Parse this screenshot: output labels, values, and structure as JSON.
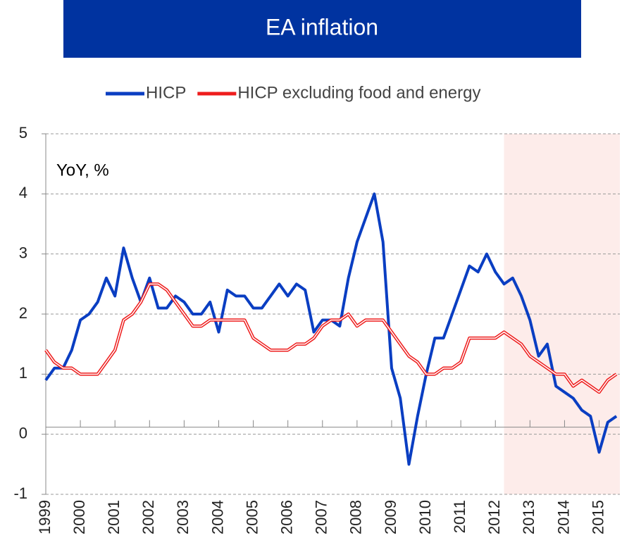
{
  "chart_data": {
    "type": "line",
    "title": "EA inflation",
    "annotation": "YoY, %",
    "x": [
      1999.0,
      1999.25,
      1999.5,
      1999.75,
      2000.0,
      2000.25,
      2000.5,
      2000.75,
      2001.0,
      2001.25,
      2001.5,
      2001.75,
      2002.0,
      2002.25,
      2002.5,
      2002.75,
      2003.0,
      2003.25,
      2003.5,
      2003.75,
      2004.0,
      2004.25,
      2004.5,
      2004.75,
      2005.0,
      2005.25,
      2005.5,
      2005.75,
      2006.0,
      2006.25,
      2006.5,
      2006.75,
      2007.0,
      2007.25,
      2007.5,
      2007.75,
      2008.0,
      2008.25,
      2008.5,
      2008.75,
      2009.0,
      2009.25,
      2009.5,
      2009.75,
      2010.0,
      2010.25,
      2010.5,
      2010.75,
      2011.0,
      2011.25,
      2011.5,
      2011.75,
      2012.0,
      2012.25,
      2012.5,
      2012.75,
      2013.0,
      2013.25,
      2013.5,
      2013.75,
      2014.0,
      2014.25,
      2014.5,
      2014.75,
      2015.0,
      2015.25,
      2015.5
    ],
    "series": [
      {
        "name": "HICP",
        "color": "#0a3ec2",
        "values": [
          0.9,
          1.1,
          1.1,
          1.4,
          1.9,
          2.0,
          2.2,
          2.6,
          2.3,
          3.1,
          2.6,
          2.2,
          2.6,
          2.1,
          2.1,
          2.3,
          2.2,
          2.0,
          2.0,
          2.2,
          1.7,
          2.4,
          2.3,
          2.3,
          2.1,
          2.1,
          2.3,
          2.5,
          2.3,
          2.5,
          2.4,
          1.7,
          1.9,
          1.9,
          1.8,
          2.6,
          3.2,
          3.6,
          4.0,
          3.2,
          1.1,
          0.6,
          -0.5,
          0.3,
          1.0,
          1.6,
          1.6,
          2.0,
          2.4,
          2.8,
          2.7,
          3.0,
          2.7,
          2.5,
          2.6,
          2.3,
          1.9,
          1.3,
          1.5,
          0.8,
          0.7,
          0.6,
          0.4,
          0.3,
          -0.3,
          0.2,
          0.3
        ]
      },
      {
        "name": "HICP excluding food and energy",
        "color": "#ee1c1c",
        "values": [
          1.4,
          1.2,
          1.1,
          1.1,
          1.0,
          1.0,
          1.0,
          1.2,
          1.4,
          1.9,
          2.0,
          2.2,
          2.5,
          2.5,
          2.4,
          2.2,
          2.0,
          1.8,
          1.8,
          1.9,
          1.9,
          1.9,
          1.9,
          1.9,
          1.6,
          1.5,
          1.4,
          1.4,
          1.4,
          1.5,
          1.5,
          1.6,
          1.8,
          1.9,
          1.9,
          2.0,
          1.8,
          1.9,
          1.9,
          1.9,
          1.7,
          1.5,
          1.3,
          1.2,
          1.0,
          1.0,
          1.1,
          1.1,
          1.2,
          1.6,
          1.6,
          1.6,
          1.6,
          1.7,
          1.6,
          1.5,
          1.3,
          1.2,
          1.1,
          1.0,
          1.0,
          0.8,
          0.9,
          0.8,
          0.7,
          0.9,
          1.0
        ]
      }
    ],
    "xlim": [
      1999,
      2015.6
    ],
    "xticks": [
      1999,
      2000,
      2001,
      2002,
      2003,
      2004,
      2005,
      2006,
      2007,
      2008,
      2009,
      2010,
      2011,
      2012,
      2013,
      2014,
      2015
    ],
    "ylim": [
      -1,
      5
    ],
    "yticks": [
      -1,
      0,
      1,
      2,
      3,
      4,
      5
    ],
    "grid": true,
    "highlight_xlim": [
      2012.25,
      2015.6
    ],
    "legend": "top"
  }
}
